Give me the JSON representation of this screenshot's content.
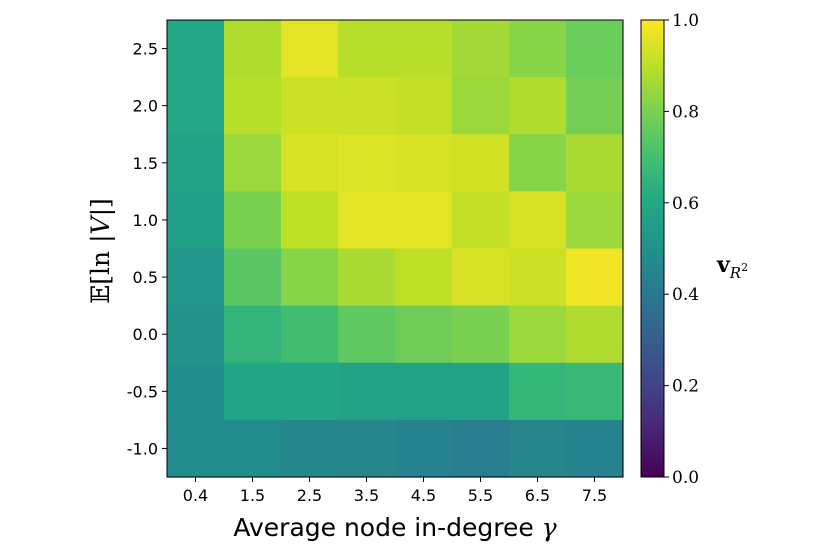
{
  "chart_data": {
    "type": "heatmap",
    "xlabel": "Average node in-degree γ",
    "ylabel": "E[ln |V|]",
    "x_categories": [
      "0.4",
      "1.5",
      "2.5",
      "3.5",
      "4.5",
      "5.5",
      "6.5",
      "7.5"
    ],
    "y_categories": [
      "2.5",
      "2.0",
      "1.5",
      "1.0",
      "0.5",
      "0.0",
      "-0.5",
      "-1.0"
    ],
    "values": [
      [
        0.6,
        0.88,
        0.96,
        0.89,
        0.89,
        0.86,
        0.82,
        0.77
      ],
      [
        0.6,
        0.89,
        0.92,
        0.92,
        0.91,
        0.85,
        0.88,
        0.79
      ],
      [
        0.58,
        0.85,
        0.94,
        0.95,
        0.94,
        0.93,
        0.82,
        0.87
      ],
      [
        0.56,
        0.8,
        0.9,
        0.96,
        0.96,
        0.91,
        0.94,
        0.85
      ],
      [
        0.53,
        0.74,
        0.82,
        0.87,
        0.9,
        0.94,
        0.92,
        0.98
      ],
      [
        0.51,
        0.65,
        0.69,
        0.75,
        0.78,
        0.8,
        0.85,
        0.88
      ],
      [
        0.49,
        0.59,
        0.59,
        0.58,
        0.57,
        0.58,
        0.66,
        0.67
      ],
      [
        0.48,
        0.48,
        0.46,
        0.45,
        0.44,
        0.42,
        0.45,
        0.44
      ]
    ],
    "colormap": "viridis",
    "colorbar": {
      "label": "v_{R²}",
      "range": [
        0.0,
        1.0
      ],
      "ticks": [
        "0.0",
        "0.2",
        "0.4",
        "0.6",
        "0.8",
        "1.0"
      ]
    }
  }
}
